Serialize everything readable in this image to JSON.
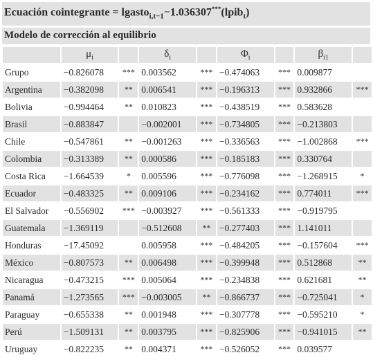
{
  "equation": {
    "prefix": "Ecuación cointegrante = lgasto",
    "sub": "i,t−1",
    "mid": "−1.036307",
    "sup": "***",
    "suffix_open": "(lpib",
    "sub2": "t",
    "suffix_close": ")"
  },
  "subtitle": "Modelo de corrección al equilibrio",
  "columns": [
    {
      "symbol": "μ",
      "sub": "i"
    },
    {
      "symbol": "δ",
      "sub": "i"
    },
    {
      "symbol": "Φ",
      "sub": "i"
    },
    {
      "symbol": "β",
      "sub": "i1"
    }
  ],
  "rows": [
    {
      "name": "Grupo",
      "cells": [
        [
          "−0.826078",
          "***"
        ],
        [
          "0.003562",
          "***"
        ],
        [
          "−0.474063",
          "***"
        ],
        [
          "0.009877",
          ""
        ]
      ]
    },
    {
      "name": "Argentina",
      "cells": [
        [
          "−0.382098",
          "**"
        ],
        [
          "0.006541",
          "***"
        ],
        [
          "−0.196313",
          "***"
        ],
        [
          "0.932866",
          "***"
        ]
      ]
    },
    {
      "name": "Bolivia",
      "cells": [
        [
          "−0.994464",
          "**"
        ],
        [
          "0.010823",
          "***"
        ],
        [
          "−0.438519",
          "***"
        ],
        [
          "0.583628",
          ""
        ]
      ]
    },
    {
      "name": "Brasil",
      "cells": [
        [
          "−0.883847",
          ""
        ],
        [
          "−0.002001",
          "***"
        ],
        [
          "−0.734805",
          "***"
        ],
        [
          "−0.213803",
          ""
        ]
      ]
    },
    {
      "name": "Chile",
      "cells": [
        [
          "−0.547861",
          "**"
        ],
        [
          "−0.001263",
          "***"
        ],
        [
          "−0.336563",
          "***"
        ],
        [
          "−1.002868",
          "***"
        ]
      ]
    },
    {
      "name": "Colombia",
      "cells": [
        [
          "−0.313389",
          "**"
        ],
        [
          "0.000586",
          "***"
        ],
        [
          "−0.185183",
          "***"
        ],
        [
          "0.330764",
          ""
        ]
      ]
    },
    {
      "name": "Costa Rica",
      "cells": [
        [
          "−1.664539",
          "*"
        ],
        [
          "0.005596",
          "***"
        ],
        [
          "−0.776098",
          "***"
        ],
        [
          "−1.268915",
          "*"
        ]
      ]
    },
    {
      "name": "Ecuador",
      "cells": [
        [
          "−0.483325",
          "**"
        ],
        [
          "0.009106",
          "***"
        ],
        [
          "−0.234162",
          "***"
        ],
        [
          "0.774011",
          "***"
        ]
      ]
    },
    {
      "name": "El Salvador",
      "cells": [
        [
          "−0.556902",
          "***"
        ],
        [
          "−0.003927",
          "***"
        ],
        [
          "−0.561333",
          "***"
        ],
        [
          "−0.919795",
          ""
        ]
      ]
    },
    {
      "name": "Guatemala",
      "cells": [
        [
          "−1.369119",
          ""
        ],
        [
          "−0.512608",
          "**"
        ],
        [
          "−0.277403",
          "***"
        ],
        [
          "1.141011",
          ""
        ]
      ]
    },
    {
      "name": "Honduras",
      "cells": [
        [
          "−17.45092",
          ""
        ],
        [
          "0.005958",
          "***"
        ],
        [
          "−0.484205",
          "***"
        ],
        [
          "−0.157604",
          "***"
        ]
      ]
    },
    {
      "name": "México",
      "cells": [
        [
          "−0.807573",
          "**"
        ],
        [
          "0.006498",
          "***"
        ],
        [
          "−0.399948",
          "***"
        ],
        [
          "0.512868",
          "**"
        ]
      ]
    },
    {
      "name": "Nicaragua",
      "cells": [
        [
          "−0.473215",
          "***"
        ],
        [
          "0.005064",
          "***"
        ],
        [
          "−0.234838",
          "***"
        ],
        [
          "0.621681",
          "**"
        ]
      ]
    },
    {
      "name": "Panamá",
      "cells": [
        [
          "−1.273565",
          "***"
        ],
        [
          "−0.003005",
          "**"
        ],
        [
          "−0.866737",
          "***"
        ],
        [
          "−0.725041",
          "*"
        ]
      ]
    },
    {
      "name": "Paraguay",
      "cells": [
        [
          "−0.655338",
          "**"
        ],
        [
          "0.001948",
          "***"
        ],
        [
          "−0.307778",
          "***"
        ],
        [
          "−0.595210",
          "*"
        ]
      ]
    },
    {
      "name": "Perú",
      "cells": [
        [
          "−1.509131",
          "**"
        ],
        [
          "0.003795",
          "***"
        ],
        [
          "−0.825906",
          "***"
        ],
        [
          "−0.941015",
          "**"
        ]
      ]
    },
    {
      "name": "Uruguay",
      "cells": [
        [
          "−0.822235",
          "**"
        ],
        [
          "0.004371",
          "***"
        ],
        [
          "−0.526052",
          "***"
        ],
        [
          "0.039577",
          ""
        ]
      ]
    }
  ]
}
